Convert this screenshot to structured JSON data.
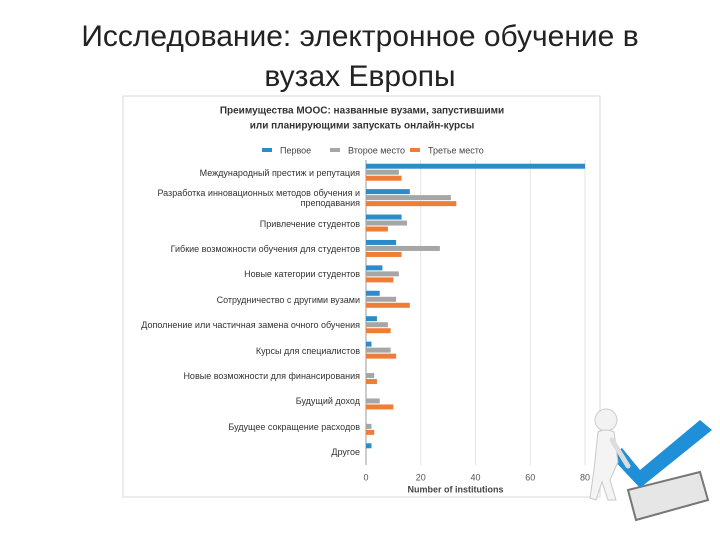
{
  "slide_title": [
    "Исследование: электронное обучение в",
    "вузах Европы"
  ],
  "chart_data": {
    "type": "hbar",
    "title": [
      "Преимущества MOOC: названные вузами, запустившими",
      "или планирующими запускать онлайн-курсы"
    ],
    "categories": [
      "Международный престиж и репутация",
      "Разработка инновационных методов обучения и преподавания",
      "Привлечение студентов",
      "Гибкие возможности обучения для студентов",
      "Новые категории студентов",
      "Сотрудничество с другими вузами",
      "Дополнение или частичная замена очного обучения",
      "Курсы для специалистов",
      "Новые возможности для финансирования",
      "Будущий доход",
      "Будущее сокращение расходов",
      "Другое"
    ],
    "series": [
      {
        "name": "Первое",
        "color": "#2e8bc9",
        "values": [
          80,
          16,
          13,
          11,
          6,
          5,
          4,
          2,
          0,
          0,
          0,
          2
        ]
      },
      {
        "name": "Второе место",
        "color": "#a6a6a6",
        "values": [
          12,
          31,
          15,
          27,
          12,
          11,
          8,
          9,
          3,
          5,
          2,
          0
        ]
      },
      {
        "name": "Третье место",
        "color": "#f07d35",
        "values": [
          13,
          33,
          8,
          13,
          10,
          16,
          9,
          11,
          4,
          10,
          3,
          0
        ]
      }
    ],
    "xlim": [
      0,
      80
    ],
    "xticks": [
      0,
      20,
      40,
      60,
      80
    ],
    "xlabel": "Number of institutions",
    "grid": true,
    "legend": "top"
  }
}
